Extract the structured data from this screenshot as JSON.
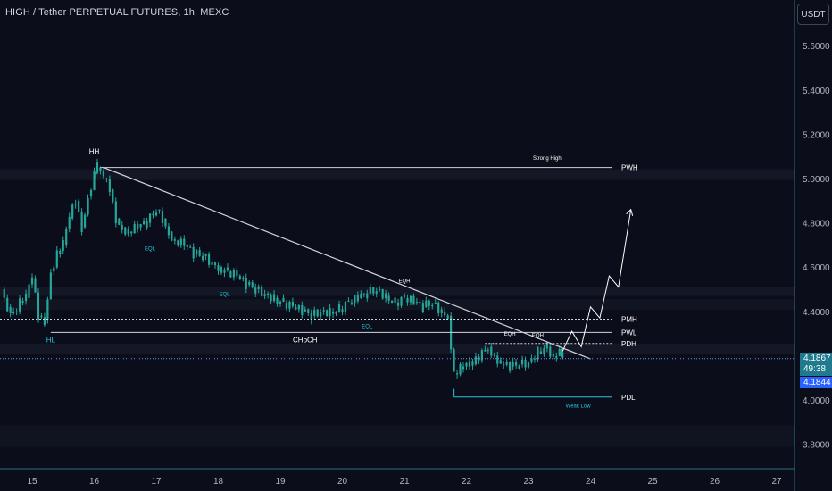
{
  "header": {
    "title": "HIGH / Tether PERPETUAL FUTURES, 1h, MEXC",
    "currency_button": "USDT"
  },
  "price_tags": {
    "last_price": "4.1867",
    "countdown": "49:38",
    "second_price": "4.1844"
  },
  "colors": {
    "background": "#0b0e1a",
    "candle": "#26a69a",
    "annotation_line": "#d1d4dc",
    "price_line": "#5b9cf6",
    "axis": "#2a6f7e"
  },
  "chart_data": {
    "type": "candlestick",
    "x_ticks": [
      "15",
      "16",
      "17",
      "18",
      "19",
      "20",
      "21",
      "22",
      "23",
      "24",
      "25",
      "26",
      "27"
    ],
    "y_ticks": [
      "5.6000",
      "5.4000",
      "5.2000",
      "5.0000",
      "4.8000",
      "4.6000",
      "4.4000",
      "4.2000",
      "4.0000",
      "3.8000"
    ],
    "ylim": [
      3.72,
      5.78
    ],
    "xlim": [
      14.5,
      27.2
    ],
    "series_close": [
      [
        14.5,
        4.5
      ],
      [
        14.6,
        4.42
      ],
      [
        14.7,
        4.4
      ],
      [
        14.8,
        4.44
      ],
      [
        14.9,
        4.46
      ],
      [
        15.0,
        4.55
      ],
      [
        15.1,
        4.38
      ],
      [
        15.2,
        4.36
      ],
      [
        15.3,
        4.58
      ],
      [
        15.4,
        4.66
      ],
      [
        15.5,
        4.7
      ],
      [
        15.6,
        4.82
      ],
      [
        15.7,
        4.9
      ],
      [
        15.8,
        4.78
      ],
      [
        15.9,
        4.92
      ],
      [
        16.0,
        5.02
      ],
      [
        16.05,
        5.05
      ],
      [
        16.15,
        5.0
      ],
      [
        16.25,
        4.95
      ],
      [
        16.35,
        4.82
      ],
      [
        16.45,
        4.78
      ],
      [
        16.55,
        4.76
      ],
      [
        16.7,
        4.78
      ],
      [
        16.85,
        4.8
      ],
      [
        17.0,
        4.86
      ],
      [
        17.1,
        4.82
      ],
      [
        17.2,
        4.76
      ],
      [
        17.3,
        4.72
      ],
      [
        17.45,
        4.7
      ],
      [
        17.6,
        4.66
      ],
      [
        17.75,
        4.65
      ],
      [
        17.9,
        4.62
      ],
      [
        18.0,
        4.6
      ],
      [
        18.15,
        4.58
      ],
      [
        18.3,
        4.56
      ],
      [
        18.45,
        4.52
      ],
      [
        18.6,
        4.5
      ],
      [
        18.75,
        4.48
      ],
      [
        18.9,
        4.46
      ],
      [
        19.05,
        4.44
      ],
      [
        19.2,
        4.42
      ],
      [
        19.35,
        4.4
      ],
      [
        19.5,
        4.38
      ],
      [
        19.65,
        4.4
      ],
      [
        19.8,
        4.4
      ],
      [
        19.95,
        4.41
      ],
      [
        20.1,
        4.44
      ],
      [
        20.25,
        4.46
      ],
      [
        20.4,
        4.48
      ],
      [
        20.55,
        4.5
      ],
      [
        20.7,
        4.47
      ],
      [
        20.85,
        4.44
      ],
      [
        21.0,
        4.46
      ],
      [
        21.15,
        4.44
      ],
      [
        21.3,
        4.42
      ],
      [
        21.45,
        4.44
      ],
      [
        21.6,
        4.4
      ],
      [
        21.7,
        4.38
      ],
      [
        21.8,
        4.12
      ],
      [
        21.9,
        4.14
      ],
      [
        22.0,
        4.15
      ],
      [
        22.1,
        4.16
      ],
      [
        22.25,
        4.22
      ],
      [
        22.35,
        4.24
      ],
      [
        22.45,
        4.2
      ],
      [
        22.55,
        4.16
      ],
      [
        22.7,
        4.15
      ],
      [
        22.85,
        4.16
      ],
      [
        23.0,
        4.17
      ],
      [
        23.15,
        4.22
      ],
      [
        23.3,
        4.24
      ],
      [
        23.4,
        4.19
      ],
      [
        23.5,
        4.21
      ],
      [
        23.55,
        4.1867
      ]
    ],
    "annotations": {
      "levels": [
        {
          "label": "PWH",
          "y": 5.05
        },
        {
          "label": "PMH",
          "y": 4.365
        },
        {
          "label": "PWL",
          "y": 4.305
        },
        {
          "label": "PDH",
          "y": 4.255
        },
        {
          "label": "PDL",
          "y": 4.013
        }
      ],
      "notes": [
        {
          "text": "Strong High",
          "x": 23.3,
          "y": 5.085
        },
        {
          "text": "HH",
          "x": 16.0,
          "y": 5.11
        },
        {
          "text": "HL",
          "x": 15.3,
          "y": 4.26
        },
        {
          "text": "CHoCH",
          "x": 19.4,
          "y": 4.26
        },
        {
          "text": "EQL",
          "x": 16.9,
          "y": 4.675
        },
        {
          "text": "EQL",
          "x": 18.1,
          "y": 4.47
        },
        {
          "text": "EQL",
          "x": 20.4,
          "y": 4.325
        },
        {
          "text": "EQH",
          "x": 21.0,
          "y": 4.53
        },
        {
          "text": "EQH",
          "x": 22.7,
          "y": 4.29
        },
        {
          "text": "EQH",
          "x": 23.15,
          "y": 4.285
        },
        {
          "text": "Weak Low",
          "x": 23.8,
          "y": 3.966
        }
      ],
      "trendline": [
        [
          16.15,
          5.05
        ],
        [
          24.0,
          4.185
        ]
      ],
      "projection": [
        [
          23.55,
          4.22
        ],
        [
          23.7,
          4.31
        ],
        [
          23.85,
          4.24
        ],
        [
          24.0,
          4.42
        ],
        [
          24.15,
          4.37
        ],
        [
          24.3,
          4.56
        ],
        [
          24.45,
          4.51
        ],
        [
          24.65,
          4.86
        ]
      ],
      "current_price": 4.1867
    }
  }
}
